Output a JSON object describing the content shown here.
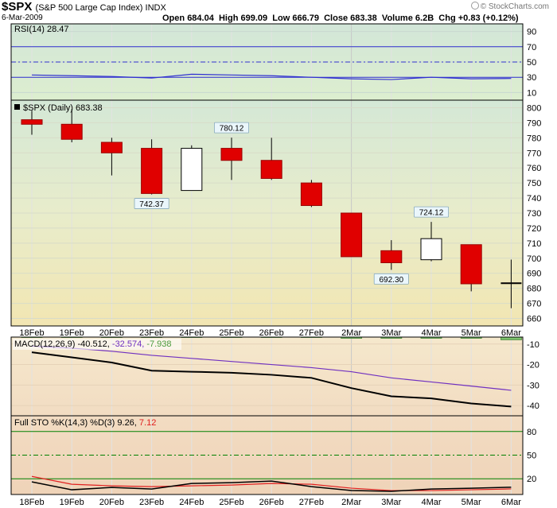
{
  "header": {
    "symbol": "$SPX",
    "name": "(S&P 500 Large Cap Index) INDX",
    "date": "6-Mar-2009",
    "open_label": "Open",
    "open": "684.04",
    "high_label": "High",
    "high": "699.09",
    "low_label": "Low",
    "low": "666.79",
    "close_label": "Close",
    "close": "683.38",
    "volume_label": "Volume",
    "volume": "6.2B",
    "chg_label": "Chg",
    "chg": "+0.83 (+0.12%)",
    "credit": "© StockCharts.com"
  },
  "colors": {
    "down": "#e00000",
    "up": "#ffffff",
    "candle_border": "#000000",
    "rsi_line": "#3030d0",
    "macd_line": "#000000",
    "signal_line": "#7030c0",
    "histogram": "#7cc26c",
    "sto_k": "#000000",
    "sto_d": "#e02020",
    "guide_blue": "#3030d0",
    "guide_green": "#008000"
  },
  "chart_data": [
    {
      "type": "line",
      "panel": "RSI",
      "title": "RSI(14) 28.47",
      "x": [
        "18Feb",
        "19Feb",
        "20Feb",
        "23Feb",
        "24Feb",
        "25Feb",
        "26Feb",
        "27Feb",
        "2Mar",
        "3Mar",
        "4Mar",
        "5Mar",
        "6Mar"
      ],
      "series": [
        {
          "name": "RSI(14)",
          "values": [
            33,
            32,
            31,
            29,
            34,
            33,
            32,
            30,
            28,
            27,
            30,
            28,
            28.47
          ]
        }
      ],
      "ylim": [
        0,
        100
      ],
      "yticks": [
        10,
        30,
        50,
        70,
        90
      ],
      "guides": [
        30,
        50,
        70
      ]
    },
    {
      "type": "candlestick",
      "panel": "Price",
      "title": "$SPX (Daily) 683.38",
      "x": [
        "18Feb",
        "19Feb",
        "20Feb",
        "23Feb",
        "24Feb",
        "25Feb",
        "26Feb",
        "27Feb",
        "2Mar",
        "3Mar",
        "4Mar",
        "5Mar",
        "6Mar"
      ],
      "candles": [
        {
          "open": 792,
          "high": 798,
          "low": 782,
          "close": 789
        },
        {
          "open": 789,
          "high": 799,
          "low": 777,
          "close": 779
        },
        {
          "open": 777,
          "high": 780,
          "low": 755,
          "close": 770
        },
        {
          "open": 773,
          "high": 779,
          "low": 742.37,
          "close": 743
        },
        {
          "open": 745,
          "high": 775,
          "low": 745,
          "close": 773
        },
        {
          "open": 773,
          "high": 780.12,
          "low": 752,
          "close": 765
        },
        {
          "open": 765,
          "high": 780,
          "low": 752,
          "close": 753
        },
        {
          "open": 750,
          "high": 752,
          "low": 734,
          "close": 735
        },
        {
          "open": 730,
          "high": 730,
          "low": 701,
          "close": 701
        },
        {
          "open": 705,
          "high": 712,
          "low": 692.3,
          "close": 697
        },
        {
          "open": 699,
          "high": 724.12,
          "low": 698,
          "close": 713
        },
        {
          "open": 709,
          "high": 709,
          "low": 678,
          "close": 683
        },
        {
          "open": 684.04,
          "high": 699.09,
          "low": 666.79,
          "close": 683.38
        }
      ],
      "annotations": [
        {
          "index": 3,
          "value": "742.37",
          "position": "below"
        },
        {
          "index": 5,
          "value": "780.12",
          "position": "above"
        },
        {
          "index": 9,
          "value": "692.30",
          "position": "below"
        },
        {
          "index": 10,
          "value": "724.12",
          "position": "above"
        }
      ],
      "ylim": [
        655,
        805
      ],
      "yticks": [
        660,
        670,
        680,
        690,
        700,
        710,
        720,
        730,
        740,
        750,
        760,
        770,
        780,
        790,
        800
      ]
    },
    {
      "type": "line",
      "panel": "MACD",
      "title": "MACD(12,26,9)",
      "values_text": [
        "-40.512",
        "-32.574",
        "-7.938"
      ],
      "x": [
        "18Feb",
        "19Feb",
        "20Feb",
        "23Feb",
        "24Feb",
        "25Feb",
        "26Feb",
        "27Feb",
        "2Mar",
        "3Mar",
        "4Mar",
        "5Mar",
        "6Mar"
      ],
      "series": [
        {
          "name": "MACD",
          "values": [
            -14,
            -16.5,
            -19,
            -23,
            -23.5,
            -24,
            -25,
            -26.5,
            -31.5,
            -35.5,
            -36.5,
            -39,
            -40.512
          ]
        },
        {
          "name": "Signal",
          "values": [
            -11,
            -12,
            -13.5,
            -15.5,
            -17,
            -18.5,
            -20,
            -21.5,
            -23.5,
            -26.5,
            -28.5,
            -30.5,
            -32.574
          ]
        }
      ],
      "histogram": [
        -6.8,
        -6.8,
        -6.8,
        -6.8,
        -6.8,
        -6.8,
        -6.8,
        -6.8,
        -7.2,
        -7.2,
        -7.2,
        -7.2,
        -7.938
      ],
      "ylim": [
        -45,
        -6.6
      ],
      "yticks": [
        -10,
        -20,
        -30,
        -40
      ]
    },
    {
      "type": "line",
      "panel": "Full STO",
      "title": "Full STO %K(14,3) %D(3) 9.26, 7.12",
      "values_text": [
        "9.26",
        "7.12"
      ],
      "x": [
        "18Feb",
        "19Feb",
        "20Feb",
        "23Feb",
        "24Feb",
        "25Feb",
        "26Feb",
        "27Feb",
        "2Mar",
        "3Mar",
        "4Mar",
        "5Mar",
        "6Mar"
      ],
      "series": [
        {
          "name": "%K",
          "values": [
            16,
            6,
            9,
            7,
            14,
            15,
            17,
            10,
            5,
            4,
            7,
            8,
            9.26
          ]
        },
        {
          "name": "%D",
          "values": [
            23,
            13,
            11,
            10,
            11,
            12,
            14,
            13,
            8,
            5,
            5,
            6,
            7.12
          ]
        }
      ],
      "ylim": [
        0,
        100
      ],
      "yticks": [
        20,
        50,
        80
      ],
      "guides": [
        20,
        50,
        80
      ]
    }
  ],
  "xaxis_labels": [
    "18Feb",
    "19Feb",
    "20Feb",
    "23Feb",
    "24Feb",
    "25Feb",
    "26Feb",
    "27Feb",
    "2Mar",
    "3Mar",
    "4Mar",
    "5Mar",
    "6Mar"
  ]
}
